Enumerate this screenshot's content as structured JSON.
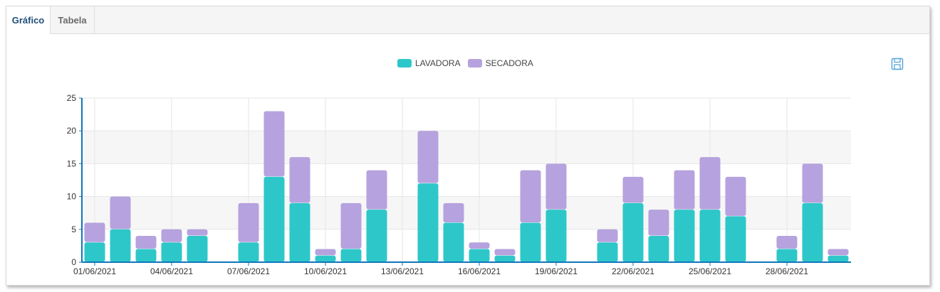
{
  "tabs": [
    {
      "label": "Gráfico",
      "active": true
    },
    {
      "label": "Tabela",
      "active": false
    }
  ],
  "toolbar": {
    "save_icon": "save-icon"
  },
  "colors": {
    "lavadora": "#2ec7c9",
    "secadora": "#b6a2de",
    "axis": "#0f77b8",
    "accent": "#1f4e79"
  },
  "chart_data": {
    "type": "bar",
    "stacked": true,
    "grid": true,
    "legend_position": "top-center",
    "ylim": [
      0,
      25
    ],
    "yticks": [
      0,
      5,
      10,
      15,
      20,
      25
    ],
    "categories": [
      "01/06/2021",
      "02/06/2021",
      "03/06/2021",
      "04/06/2021",
      "05/06/2021",
      "06/06/2021",
      "07/06/2021",
      "08/06/2021",
      "09/06/2021",
      "10/06/2021",
      "11/06/2021",
      "12/06/2021",
      "13/06/2021",
      "14/06/2021",
      "15/06/2021",
      "16/06/2021",
      "17/06/2021",
      "18/06/2021",
      "19/06/2021",
      "20/06/2021",
      "21/06/2021",
      "22/06/2021",
      "23/06/2021",
      "24/06/2021",
      "25/06/2021",
      "26/06/2021",
      "27/06/2021",
      "28/06/2021",
      "29/06/2021",
      "30/06/2021"
    ],
    "xtick_labels": [
      "01/06/2021",
      "04/06/2021",
      "07/06/2021",
      "10/06/2021",
      "13/06/2021",
      "16/06/2021",
      "19/06/2021",
      "22/06/2021",
      "25/06/2021",
      "28/06/2021"
    ],
    "series": [
      {
        "name": "LAVADORA",
        "values": [
          3,
          5,
          2,
          3,
          4,
          0,
          3,
          13,
          9,
          1,
          2,
          8,
          0,
          12,
          6,
          2,
          1,
          6,
          8,
          0,
          3,
          9,
          4,
          8,
          8,
          7,
          0,
          2,
          9,
          1
        ]
      },
      {
        "name": "SECADORA",
        "values": [
          3,
          5,
          2,
          2,
          1,
          0,
          6,
          10,
          7,
          1,
          7,
          6,
          0,
          8,
          3,
          1,
          1,
          8,
          7,
          0,
          2,
          4,
          4,
          6,
          8,
          6,
          0,
          2,
          6,
          1
        ]
      }
    ]
  }
}
